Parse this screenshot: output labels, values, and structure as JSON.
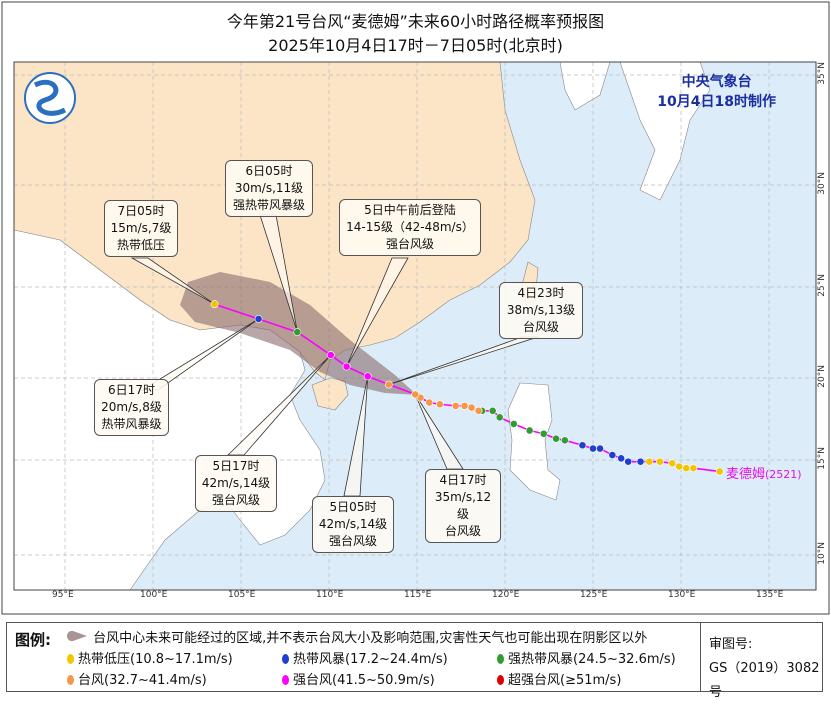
{
  "title": {
    "line1": "今年第21号台风“麦德姆”未来60小时路径概率预报图",
    "line2": "2025年10月4日17时－7日05时(北京时)"
  },
  "agency": {
    "name": "中央气象台",
    "issued": "10月4日18时制作"
  },
  "axes": {
    "lon_labels": [
      "95°E",
      "100°E",
      "105°E",
      "110°E",
      "115°E",
      "120°E",
      "125°E",
      "130°E",
      "135°E"
    ],
    "lat_labels": [
      "35°N",
      "30°N",
      "25°N",
      "20°N",
      "15°N",
      "10°N"
    ]
  },
  "storm": {
    "name": "麦德姆",
    "code": "(2521)"
  },
  "colors": {
    "tropical_depression": "#f2c500",
    "tropical_storm": "#1f3fd0",
    "severe_tropical_storm": "#2f9e2f",
    "typhoon": "#f79646",
    "severe_typhoon": "#ff00ff",
    "super_typhoon": "#e00000",
    "track_line": "#ff00ff",
    "land_china": "#fbe5c6",
    "sea": "#dcedf9",
    "cone": "#8a6a6e"
  },
  "past_track": [
    {
      "lon": 132.2,
      "lat": 14.3,
      "level": "tropical_depression"
    },
    {
      "lon": 130.7,
      "lat": 14.5,
      "level": "tropical_depression"
    },
    {
      "lon": 130.3,
      "lat": 14.5,
      "level": "tropical_depression"
    },
    {
      "lon": 129.9,
      "lat": 14.6,
      "level": "tropical_depression"
    },
    {
      "lon": 129.5,
      "lat": 14.8,
      "level": "tropical_depression"
    },
    {
      "lon": 128.8,
      "lat": 14.9,
      "level": "tropical_depression"
    },
    {
      "lon": 128.2,
      "lat": 14.9,
      "level": "tropical_depression"
    },
    {
      "lon": 127.7,
      "lat": 14.9,
      "level": "tropical_storm"
    },
    {
      "lon": 127.0,
      "lat": 14.9,
      "level": "tropical_storm"
    },
    {
      "lon": 126.6,
      "lat": 15.1,
      "level": "tropical_storm"
    },
    {
      "lon": 126.1,
      "lat": 15.3,
      "level": "tropical_storm"
    },
    {
      "lon": 125.4,
      "lat": 15.7,
      "level": "tropical_storm"
    },
    {
      "lon": 125.0,
      "lat": 15.7,
      "level": "tropical_storm"
    },
    {
      "lon": 124.4,
      "lat": 15.9,
      "level": "tropical_storm"
    },
    {
      "lon": 123.4,
      "lat": 16.2,
      "level": "severe_tropical_storm"
    },
    {
      "lon": 122.9,
      "lat": 16.3,
      "level": "severe_tropical_storm"
    },
    {
      "lon": 122.2,
      "lat": 16.6,
      "level": "severe_tropical_storm"
    },
    {
      "lon": 121.4,
      "lat": 16.8,
      "level": "severe_tropical_storm"
    },
    {
      "lon": 120.5,
      "lat": 17.2,
      "level": "severe_tropical_storm"
    },
    {
      "lon": 119.7,
      "lat": 17.6,
      "level": "severe_tropical_storm"
    },
    {
      "lon": 119.3,
      "lat": 18.0,
      "level": "severe_tropical_storm"
    },
    {
      "lon": 118.7,
      "lat": 18.0,
      "level": "severe_tropical_storm"
    },
    {
      "lon": 118.5,
      "lat": 18.0,
      "level": "typhoon"
    },
    {
      "lon": 118.1,
      "lat": 18.2,
      "level": "typhoon"
    },
    {
      "lon": 117.7,
      "lat": 18.3,
      "level": "typhoon"
    },
    {
      "lon": 117.2,
      "lat": 18.3,
      "level": "typhoon"
    },
    {
      "lon": 116.3,
      "lat": 18.4,
      "level": "typhoon"
    },
    {
      "lon": 115.7,
      "lat": 18.5,
      "level": "typhoon"
    },
    {
      "lon": 115.2,
      "lat": 18.8,
      "level": "typhoon"
    }
  ],
  "forecast_track": [
    {
      "time": "4日17时",
      "lon": 114.9,
      "lat": 19.0,
      "level": "typhoon"
    },
    {
      "time": "4日23时",
      "lon": 113.4,
      "lat": 19.6,
      "level": "typhoon"
    },
    {
      "time": "5日05时",
      "lon": 112.2,
      "lat": 20.1,
      "level": "severe_typhoon"
    },
    {
      "time": "5日中午",
      "lon": 111.0,
      "lat": 20.7,
      "level": "severe_typhoon"
    },
    {
      "time": "5日17时",
      "lon": 110.1,
      "lat": 21.4,
      "level": "severe_typhoon"
    },
    {
      "time": "6日05时",
      "lon": 108.2,
      "lat": 22.8,
      "level": "severe_tropical_storm"
    },
    {
      "time": "6日17时",
      "lon": 106.0,
      "lat": 23.6,
      "level": "tropical_storm"
    },
    {
      "time": "7日05时",
      "lon": 103.5,
      "lat": 24.5,
      "level": "tropical_depression"
    }
  ],
  "callouts": {
    "d7_05": {
      "l1": "7日05时",
      "l2": "15m/s,7级",
      "l3": "热带低压"
    },
    "d6_05": {
      "l1": "6日05时",
      "l2": "30m/s,11级",
      "l3": "强热带风暴级"
    },
    "landfall": {
      "l1": "5日中午前后登陆",
      "l2": "14-15级（42-48m/s）",
      "l3": "强台风级"
    },
    "d4_23": {
      "l1": "4日23时",
      "l2": "38m/s,13级",
      "l3": "台风级"
    },
    "d6_17": {
      "l1": "6日17时",
      "l2": "20m/s,8级",
      "l3": "热带风暴级"
    },
    "d5_17": {
      "l1": "5日17时",
      "l2": "42m/s,14级",
      "l3": "强台风级"
    },
    "d5_05": {
      "l1": "5日05时",
      "l2": "42m/s,14级",
      "l3": "强台风级"
    },
    "d4_17": {
      "l1": "4日17时",
      "l2": "35m/s,12级",
      "l3": "台风级"
    }
  },
  "legend": {
    "title": "图例:",
    "cone_text": "台风中心未来可能经过的区域,并不表示台风大小及影响范围,灾害性天气也可能出现在阴影区以外",
    "items": [
      {
        "label": "热带低压(10.8~17.1m/s)",
        "color": "#f2c500"
      },
      {
        "label": "热带风暴(17.2~24.4m/s)",
        "color": "#1f3fd0"
      },
      {
        "label": "强热带风暴(24.5~32.6m/s)",
        "color": "#2f9e2f"
      },
      {
        "label": "台风(32.7~41.4m/s)",
        "color": "#f79646"
      },
      {
        "label": "强台风(41.5~50.9m/s)",
        "color": "#ff00ff"
      },
      {
        "label": "超强台风(≥51m/s)",
        "color": "#e00000"
      }
    ],
    "review_label": "审图号:",
    "review_no": "GS（2019）3082号"
  }
}
